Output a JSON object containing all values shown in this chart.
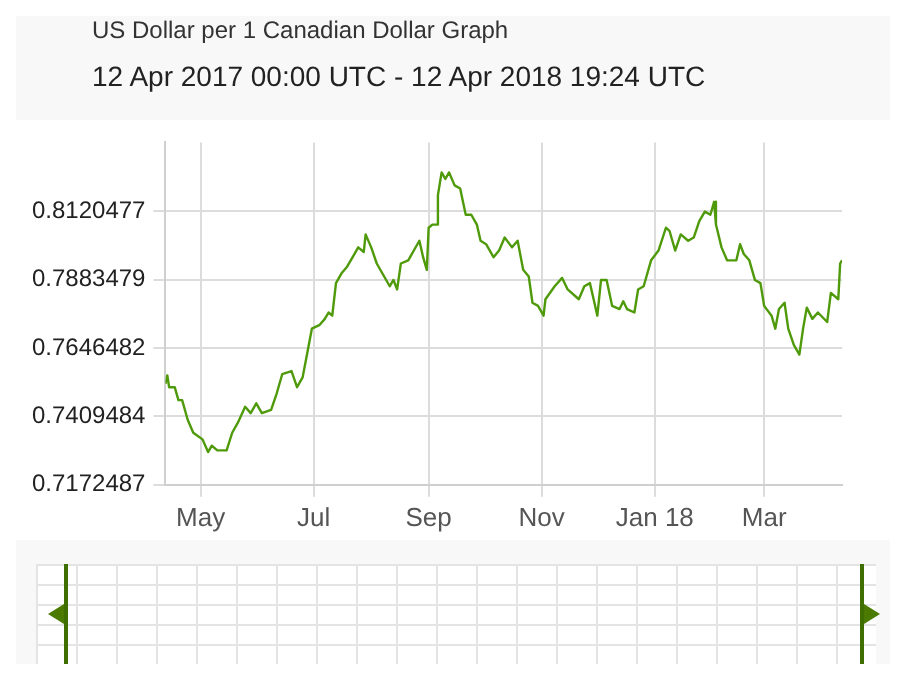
{
  "chart_data": {
    "type": "line",
    "title": "US Dollar per 1 Canadian Dollar Graph",
    "subtitle": "12 Apr 2017 00:00 UTC - 12 Apr 2018 19:24 UTC",
    "x": [
      "2017-04-12",
      "2017-04-13",
      "2017-04-14",
      "2017-04-17",
      "2017-04-19",
      "2017-04-21",
      "2017-04-24",
      "2017-04-27",
      "2017-05-02",
      "2017-05-05",
      "2017-05-07",
      "2017-05-10",
      "2017-05-15",
      "2017-05-18",
      "2017-05-21",
      "2017-05-25",
      "2017-05-28",
      "2017-05-31",
      "2017-06-03",
      "2017-06-08",
      "2017-06-11",
      "2017-06-14",
      "2017-06-19",
      "2017-06-22",
      "2017-06-25",
      "2017-06-28",
      "2017-06-30",
      "2017-07-04",
      "2017-07-07",
      "2017-07-09",
      "2017-07-11",
      "2017-07-13",
      "2017-07-16",
      "2017-07-19",
      "2017-07-22",
      "2017-07-25",
      "2017-07-28",
      "2017-07-29",
      "2017-08-01",
      "2017-08-04",
      "2017-08-08",
      "2017-08-11",
      "2017-08-13",
      "2017-08-15",
      "2017-08-17",
      "2017-08-21",
      "2017-08-24",
      "2017-08-27",
      "2017-08-29",
      "2017-08-31",
      "2017-09-01",
      "2017-09-03",
      "2017-09-05",
      "2017-09-06",
      "2017-09-08",
      "2017-09-10",
      "2017-09-12",
      "2017-09-15",
      "2017-09-18",
      "2017-09-21",
      "2017-09-24",
      "2017-09-27",
      "2017-09-29",
      "2017-10-02",
      "2017-10-06",
      "2017-10-09",
      "2017-10-12",
      "2017-10-16",
      "2017-10-19",
      "2017-10-22",
      "2017-10-25",
      "2017-10-27",
      "2017-10-30",
      "2017-11-02",
      "2017-11-03",
      "2017-11-08",
      "2017-11-12",
      "2017-11-15",
      "2017-11-21",
      "2017-11-24",
      "2017-11-27",
      "2017-11-29",
      "2017-12-01",
      "2017-12-03",
      "2017-12-06",
      "2017-12-09",
      "2017-12-13",
      "2017-12-15",
      "2017-12-17",
      "2017-12-21",
      "2017-12-23",
      "2017-12-26",
      "2017-12-30",
      "2018-01-03",
      "2018-01-07",
      "2018-01-09",
      "2018-01-12",
      "2018-01-15",
      "2018-01-19",
      "2018-01-22",
      "2018-01-25",
      "2018-01-28",
      "2018-01-31",
      "2018-02-02",
      "2018-02-03",
      "2018-02-06",
      "2018-02-09",
      "2018-02-14",
      "2018-02-16",
      "2018-02-18",
      "2018-02-21",
      "2018-02-24",
      "2018-02-27",
      "2018-03-01",
      "2018-03-05",
      "2018-03-07",
      "2018-03-09",
      "2018-03-12",
      "2018-03-14",
      "2018-03-17",
      "2018-03-20",
      "2018-03-22",
      "2018-03-24",
      "2018-03-27",
      "2018-03-30",
      "2018-04-04",
      "2018-04-06",
      "2018-04-10",
      "2018-04-11",
      "2018-04-12"
    ],
    "series": [
      {
        "color": "#4f9a0a",
        "values": [
          0.7523,
          0.7552,
          0.7511,
          0.7511,
          0.7466,
          0.7466,
          0.7398,
          0.7353,
          0.733,
          0.7286,
          0.7308,
          0.7292,
          0.7292,
          0.7353,
          0.7387,
          0.7443,
          0.7421,
          0.7455,
          0.7421,
          0.7432,
          0.7489,
          0.7556,
          0.7567,
          0.7511,
          0.7545,
          0.7646,
          0.7714,
          0.7726,
          0.7748,
          0.777,
          0.7759,
          0.7872,
          0.7906,
          0.7929,
          0.7962,
          0.7996,
          0.798,
          0.8041,
          0.7996,
          0.794,
          0.7895,
          0.7861,
          0.7883,
          0.785,
          0.794,
          0.7951,
          0.7985,
          0.8019,
          0.7962,
          0.7918,
          0.8064,
          0.8075,
          0.8075,
          0.8177,
          0.8256,
          0.8233,
          0.8256,
          0.8211,
          0.82,
          0.8109,
          0.8109,
          0.8075,
          0.8019,
          0.8007,
          0.7962,
          0.7985,
          0.803,
          0.7996,
          0.8019,
          0.7918,
          0.7895,
          0.7804,
          0.7793,
          0.7759,
          0.7816,
          0.7861,
          0.789,
          0.785,
          0.7816,
          0.7861,
          0.7872,
          0.7816,
          0.7759,
          0.7883,
          0.7883,
          0.7793,
          0.7782,
          0.7809,
          0.7782,
          0.777,
          0.785,
          0.7861,
          0.7951,
          0.7985,
          0.8064,
          0.8052,
          0.7985,
          0.8041,
          0.8019,
          0.803,
          0.8087,
          0.812,
          0.8109,
          0.8154,
          0.8075,
          0.7996,
          0.7951,
          0.7951,
          0.8007,
          0.7973,
          0.7951,
          0.7883,
          0.7872,
          0.7793,
          0.7759,
          0.7714,
          0.7782,
          0.7804,
          0.7714,
          0.7658,
          0.7624,
          0.7714,
          0.7787,
          0.7748,
          0.777,
          0.7737,
          0.7838,
          0.7816,
          0.794,
          0.7951
        ]
      }
    ],
    "xlim": [
      "2017-04-12",
      "2018-04-12"
    ],
    "xticks": [
      {
        "value": "2017-05-01",
        "label": "May"
      },
      {
        "value": "2017-07-01",
        "label": "Jul"
      },
      {
        "value": "2017-09-01",
        "label": "Sep"
      },
      {
        "value": "2017-11-01",
        "label": "Nov"
      },
      {
        "value": "2018-01-01",
        "label": "Jan 18"
      },
      {
        "value": "2018-03-01",
        "label": "Mar"
      }
    ],
    "ylim": [
      0.7172487,
      0.836
    ],
    "yticks": [
      0.7172487,
      0.7409484,
      0.7646482,
      0.7883479,
      0.8120477
    ],
    "grid": true,
    "legend": false,
    "marker": "none",
    "line_style": "solid"
  }
}
